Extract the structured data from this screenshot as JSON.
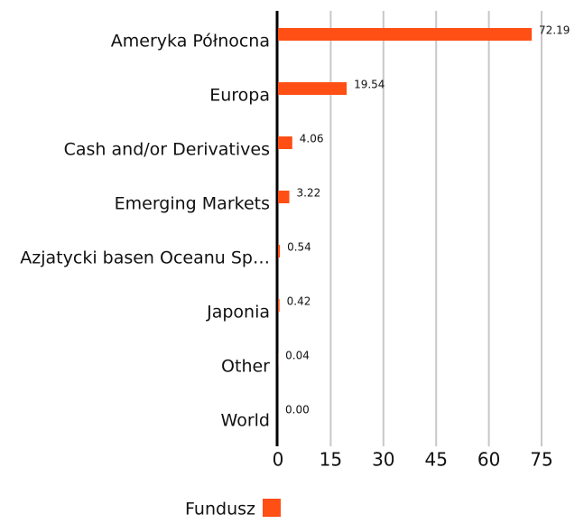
{
  "chart_data": {
    "type": "barh",
    "categories": [
      "Ameryka Północna",
      "Europa",
      "Cash and/or Derivatives",
      "Emerging Markets",
      "Azjatycki basen Oceanu Sp…",
      "Japonia",
      "Other",
      "World"
    ],
    "series": [
      {
        "name": "Fundusz",
        "color": "#ff4f14",
        "values": [
          72.19,
          19.54,
          4.06,
          3.22,
          0.54,
          0.42,
          0.04,
          0
        ],
        "value_labels": [
          "72.19",
          "19.54",
          "4.06",
          "3.22",
          "0.54",
          "0.42",
          "0.04",
          "0.00"
        ]
      }
    ],
    "xlim": [
      0,
      75
    ],
    "xticks": [
      0,
      15,
      30,
      45,
      60,
      75
    ],
    "grid": true
  }
}
